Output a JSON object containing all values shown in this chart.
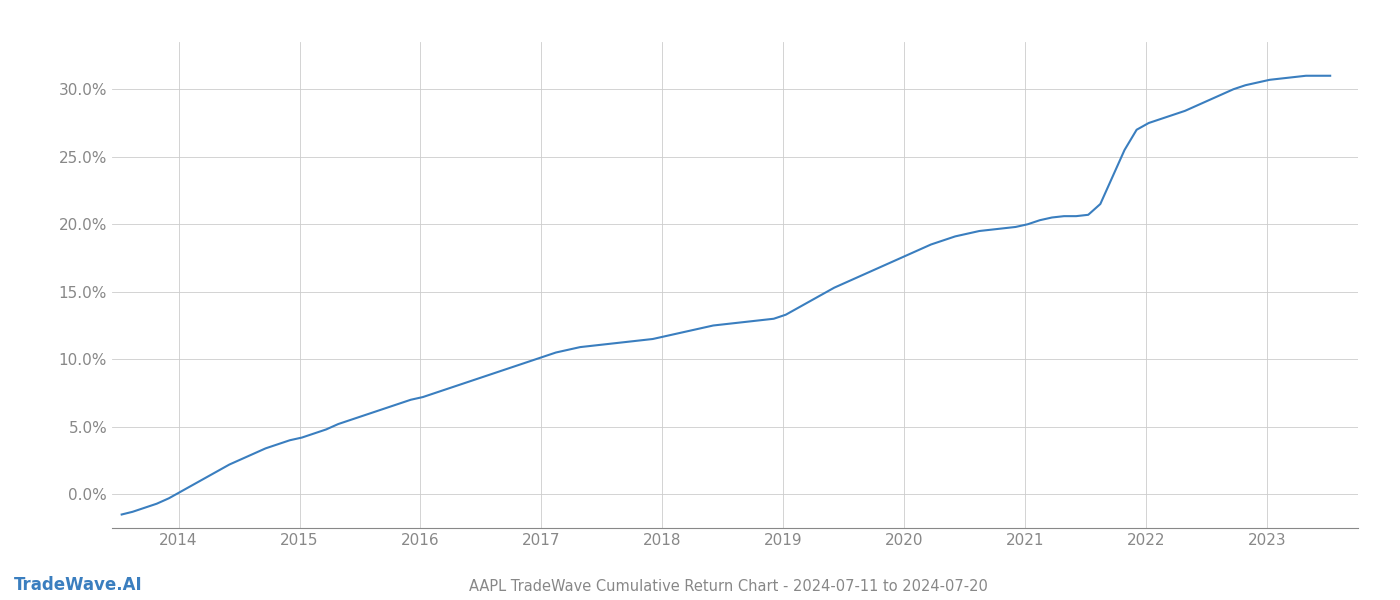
{
  "title": "AAPL TradeWave Cumulative Return Chart - 2024-07-11 to 2024-07-20",
  "watermark": "TradeWave.AI",
  "line_color": "#3a7ebf",
  "background_color": "#ffffff",
  "grid_color": "#cccccc",
  "x_years": [
    2014,
    2015,
    2016,
    2017,
    2018,
    2019,
    2020,
    2021,
    2022,
    2023
  ],
  "data_x": [
    2013.53,
    2013.62,
    2013.72,
    2013.82,
    2013.92,
    2014.02,
    2014.12,
    2014.22,
    2014.32,
    2014.42,
    2014.52,
    2014.62,
    2014.72,
    2014.82,
    2014.92,
    2015.02,
    2015.12,
    2015.22,
    2015.32,
    2015.42,
    2015.52,
    2015.62,
    2015.72,
    2015.82,
    2015.92,
    2016.02,
    2016.12,
    2016.22,
    2016.32,
    2016.42,
    2016.52,
    2016.62,
    2016.72,
    2016.82,
    2016.92,
    2017.02,
    2017.12,
    2017.22,
    2017.32,
    2017.42,
    2017.52,
    2017.62,
    2017.72,
    2017.82,
    2017.92,
    2018.02,
    2018.12,
    2018.22,
    2018.32,
    2018.42,
    2018.52,
    2018.62,
    2018.72,
    2018.82,
    2018.92,
    2019.02,
    2019.12,
    2019.22,
    2019.32,
    2019.42,
    2019.52,
    2019.62,
    2019.72,
    2019.82,
    2019.92,
    2020.02,
    2020.12,
    2020.22,
    2020.32,
    2020.42,
    2020.52,
    2020.62,
    2020.72,
    2020.82,
    2020.92,
    2021.02,
    2021.12,
    2021.22,
    2021.32,
    2021.42,
    2021.52,
    2021.62,
    2021.72,
    2021.82,
    2021.92,
    2022.02,
    2022.12,
    2022.22,
    2022.32,
    2022.42,
    2022.52,
    2022.62,
    2022.72,
    2022.82,
    2022.92,
    2023.02,
    2023.12,
    2023.22,
    2023.32,
    2023.42,
    2023.52
  ],
  "data_y": [
    -1.5,
    -1.3,
    -1.0,
    -0.7,
    -0.3,
    0.2,
    0.7,
    1.2,
    1.7,
    2.2,
    2.6,
    3.0,
    3.4,
    3.7,
    4.0,
    4.2,
    4.5,
    4.8,
    5.2,
    5.5,
    5.8,
    6.1,
    6.4,
    6.7,
    7.0,
    7.2,
    7.5,
    7.8,
    8.1,
    8.4,
    8.7,
    9.0,
    9.3,
    9.6,
    9.9,
    10.2,
    10.5,
    10.7,
    10.9,
    11.0,
    11.1,
    11.2,
    11.3,
    11.4,
    11.5,
    11.7,
    11.9,
    12.1,
    12.3,
    12.5,
    12.6,
    12.7,
    12.8,
    12.9,
    13.0,
    13.3,
    13.8,
    14.3,
    14.8,
    15.3,
    15.7,
    16.1,
    16.5,
    16.9,
    17.3,
    17.7,
    18.1,
    18.5,
    18.8,
    19.1,
    19.3,
    19.5,
    19.6,
    19.7,
    19.8,
    20.0,
    20.3,
    20.5,
    20.6,
    20.6,
    20.7,
    21.5,
    23.5,
    25.5,
    27.0,
    27.5,
    27.8,
    28.1,
    28.4,
    28.8,
    29.2,
    29.6,
    30.0,
    30.3,
    30.5,
    30.7,
    30.8,
    30.9,
    31.0,
    31.0,
    31.0
  ],
  "ylim": [
    -2.5,
    33.5
  ],
  "xlim": [
    2013.45,
    2023.75
  ],
  "yticks": [
    0.0,
    5.0,
    10.0,
    15.0,
    20.0,
    25.0,
    30.0
  ],
  "ytick_labels": [
    "0.0%",
    "5.0%",
    "10.0%",
    "15.0%",
    "20.0%",
    "25.0%",
    "30.0%"
  ],
  "title_fontsize": 10.5,
  "watermark_fontsize": 12,
  "tick_fontsize": 11,
  "tick_color": "#888888",
  "axis_color": "#888888",
  "line_width": 1.5
}
